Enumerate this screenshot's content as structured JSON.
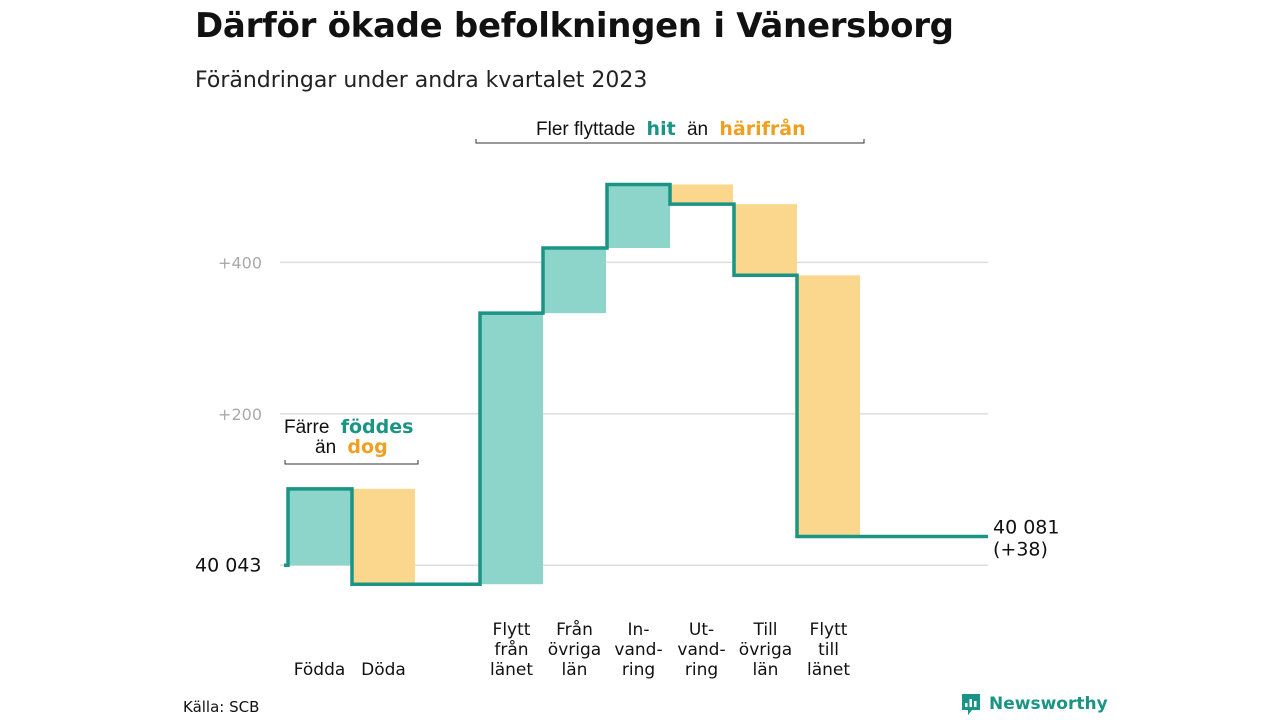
{
  "title": "Därför ökade befolkningen i Vänersborg",
  "subtitle": "Förändringar under andra kvartalet 2023",
  "source": "Källa: SCB",
  "brand": "Newsworthy",
  "annotations": {
    "top": {
      "pre": "Fler flyttade",
      "hit": "hit",
      "mid": "än",
      "hari": "härifrån"
    },
    "left": {
      "pre": "Färre",
      "fod": "föddes",
      "mid": "än",
      "dog": "dog"
    }
  },
  "colors": {
    "increase": "#8dd5cb",
    "decrease": "#fad78c",
    "line": "#1a9484",
    "grid": "#dddddd"
  },
  "chart_data": {
    "type": "waterfall",
    "start": {
      "value": 40043,
      "label": "40  043"
    },
    "end": {
      "value": 40081,
      "label": "40 081",
      "change_label": "(+38)"
    },
    "y_ticks": [
      {
        "value": 200,
        "label": "+200"
      },
      {
        "value": 400,
        "label": "+400"
      }
    ],
    "ylim": [
      -30,
      530
    ],
    "steps": [
      {
        "label_lines": [
          "Födda"
        ],
        "delta": 101
      },
      {
        "label_lines": [
          "Döda"
        ],
        "delta": -126
      },
      {
        "label_lines": [
          "Flytt",
          "från",
          "länet"
        ],
        "delta": 358
      },
      {
        "label_lines": [
          "Från",
          "övriga",
          "län"
        ],
        "delta": 86
      },
      {
        "label_lines": [
          "In-",
          "vand-",
          "ring"
        ],
        "delta": 84
      },
      {
        "label_lines": [
          "Ut-",
          "vand-",
          "ring"
        ],
        "delta": -26
      },
      {
        "label_lines": [
          "Till",
          "övriga",
          "län"
        ],
        "delta": -94
      },
      {
        "label_lines": [
          "Flytt",
          "till",
          "länet"
        ],
        "delta": -345
      }
    ]
  }
}
